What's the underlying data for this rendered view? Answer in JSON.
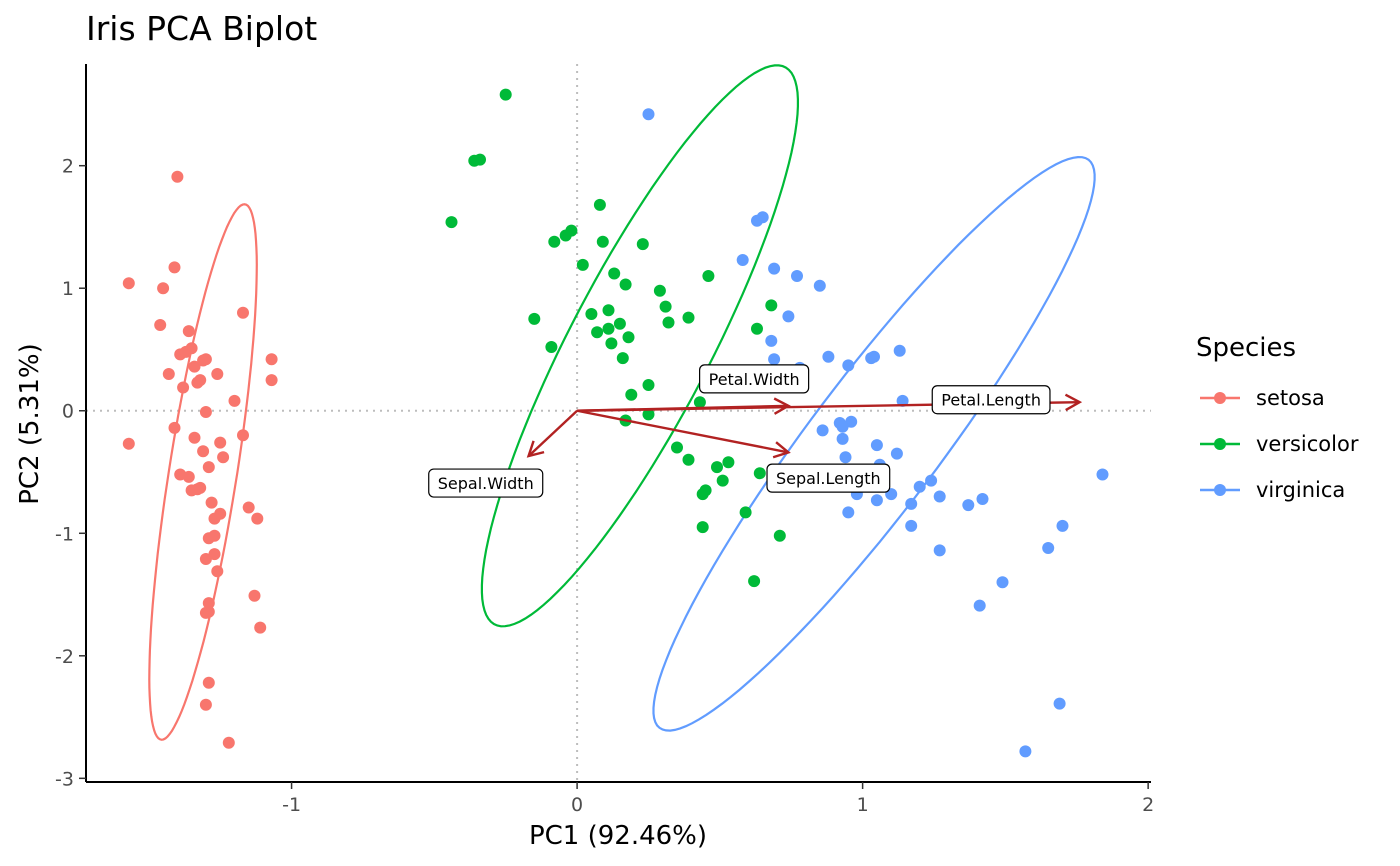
{
  "chart_data": {
    "type": "scatter",
    "title": "Iris PCA Biplot",
    "xlabel": "PC1 (92.46%)",
    "ylabel": "PC2 (5.31%)",
    "xlim": [
      -1.72,
      2.01
    ],
    "ylim": [
      -3.03,
      2.83
    ],
    "x_ticks": [
      -1,
      0,
      1,
      2
    ],
    "y_ticks": [
      -3,
      -2,
      -1,
      0,
      1,
      2
    ],
    "x_tick_labels": [
      "-1",
      "0",
      "1",
      "2"
    ],
    "y_tick_labels": [
      "-3",
      "-2",
      "-1",
      "0",
      "1",
      "2"
    ],
    "reference_lines": {
      "x": 0,
      "y": 0,
      "style": "dotted"
    },
    "grid": false,
    "legend": {
      "title": "Species",
      "position": "right"
    },
    "series": [
      {
        "name": "setosa",
        "color": "#F8766D",
        "x": [
          -1.57,
          -1.57,
          -1.45,
          -1.46,
          -1.43,
          -1.41,
          -1.41,
          -1.4,
          -1.39,
          -1.39,
          -1.38,
          -1.37,
          -1.36,
          -1.36,
          -1.35,
          -1.35,
          -1.34,
          -1.34,
          -1.33,
          -1.33,
          -1.32,
          -1.32,
          -1.31,
          -1.31,
          -1.3,
          -1.3,
          -1.3,
          -1.3,
          -1.3,
          -1.29,
          -1.29,
          -1.29,
          -1.29,
          -1.29,
          -1.28,
          -1.27,
          -1.27,
          -1.27,
          -1.26,
          -1.26,
          -1.25,
          -1.25,
          -1.24,
          -1.22,
          -1.2,
          -1.17,
          -1.17,
          -1.15,
          -1.13,
          -1.12,
          -1.11,
          -1.07,
          -1.07
        ],
        "y": [
          1.04,
          -0.27,
          1.0,
          0.7,
          0.3,
          1.17,
          -0.14,
          1.91,
          0.46,
          -0.52,
          0.19,
          0.48,
          -0.54,
          0.65,
          0.51,
          -0.65,
          0.36,
          -0.22,
          0.23,
          -0.64,
          0.25,
          -0.63,
          0.41,
          -0.33,
          -0.01,
          -1.21,
          -1.65,
          -2.4,
          0.42,
          -1.64,
          -0.46,
          -1.04,
          -2.22,
          -1.57,
          -0.75,
          -1.17,
          -0.88,
          -1.02,
          0.3,
          -1.31,
          -0.26,
          -0.84,
          -0.38,
          -2.71,
          0.08,
          0.8,
          -0.2,
          -0.79,
          -1.51,
          -0.88,
          -1.77,
          0.42,
          0.25
        ]
      },
      {
        "name": "versicolor",
        "color": "#00BA38",
        "x": [
          -0.44,
          -0.36,
          -0.34,
          -0.25,
          -0.15,
          -0.09,
          -0.08,
          -0.04,
          -0.02,
          0.02,
          0.07,
          0.08,
          0.09,
          0.11,
          0.11,
          0.12,
          0.13,
          0.15,
          0.16,
          0.17,
          0.18,
          0.19,
          0.23,
          0.25,
          0.29,
          0.31,
          0.32,
          0.35,
          0.39,
          0.39,
          0.43,
          0.44,
          0.44,
          0.45,
          0.46,
          0.49,
          0.51,
          0.53,
          0.59,
          0.62,
          0.63,
          0.64,
          0.68,
          0.71,
          0.17,
          0.05,
          0.25
        ],
        "y": [
          1.54,
          2.04,
          2.05,
          2.58,
          0.75,
          0.52,
          1.38,
          1.43,
          1.47,
          1.19,
          0.64,
          1.68,
          1.38,
          0.82,
          0.67,
          0.55,
          1.12,
          0.71,
          0.43,
          1.03,
          0.6,
          0.13,
          1.36,
          0.21,
          0.98,
          0.85,
          0.72,
          -0.3,
          -0.4,
          0.76,
          0.07,
          -0.68,
          -0.95,
          -0.65,
          1.1,
          -0.46,
          -0.57,
          -0.42,
          -0.83,
          -1.39,
          0.67,
          -0.51,
          0.86,
          -1.02,
          -0.08,
          0.79,
          -0.03
        ]
      },
      {
        "name": "virginica",
        "color": "#619CFF",
        "x": [
          0.25,
          0.58,
          0.63,
          0.65,
          0.68,
          0.69,
          0.69,
          0.74,
          0.77,
          0.85,
          0.86,
          0.88,
          0.92,
          0.93,
          0.94,
          0.95,
          0.95,
          0.96,
          1.03,
          1.04,
          1.05,
          1.05,
          1.06,
          1.1,
          1.12,
          1.13,
          1.14,
          1.17,
          1.17,
          1.2,
          1.24,
          1.27,
          1.27,
          1.37,
          1.41,
          1.42,
          1.49,
          1.57,
          1.65,
          1.69,
          1.7,
          1.84,
          0.93,
          0.98,
          0.78
        ],
        "y": [
          2.42,
          1.23,
          1.55,
          1.58,
          0.57,
          0.42,
          1.16,
          0.77,
          1.1,
          1.02,
          -0.16,
          0.44,
          -0.1,
          -0.23,
          -0.38,
          0.37,
          -0.83,
          -0.09,
          0.43,
          0.44,
          -0.28,
          -0.73,
          -0.44,
          -0.68,
          -0.35,
          0.49,
          0.08,
          -0.94,
          -0.76,
          -0.62,
          -0.57,
          -0.7,
          -1.14,
          -0.77,
          -1.59,
          -0.72,
          -1.4,
          -2.78,
          -1.12,
          -2.39,
          -0.94,
          -0.52,
          -0.13,
          -0.68,
          0.35
        ]
      }
    ],
    "ellipses": [
      {
        "series": "setosa",
        "center": [
          -1.31,
          -0.5
        ],
        "semi_major": 2.19,
        "semi_minor": 0.12,
        "angle_deg": 86.2
      },
      {
        "series": "versicolor",
        "center": [
          0.22,
          0.53
        ],
        "semi_major": 2.34,
        "semi_minor": 0.27,
        "angle_deg": 78.0
      },
      {
        "series": "virginica",
        "center": [
          1.04,
          -0.27
        ],
        "semi_major": 2.45,
        "semi_minor": 0.27,
        "angle_deg": 72.7
      }
    ],
    "loadings": [
      {
        "name": "Petal.Width",
        "x": 0.74,
        "y": 0.04,
        "label_x": 0.62,
        "label_y": 0.26
      },
      {
        "name": "Petal.Length",
        "x": 1.76,
        "y": 0.07,
        "label_x": 1.45,
        "label_y": 0.09
      },
      {
        "name": "Sepal.Width",
        "x": -0.17,
        "y": -0.37,
        "label_x": -0.32,
        "label_y": -0.59
      },
      {
        "name": "Sepal.Length",
        "x": 0.74,
        "y": -0.34,
        "label_x": 0.88,
        "label_y": -0.55
      }
    ],
    "arrow_color": "#B22222"
  }
}
